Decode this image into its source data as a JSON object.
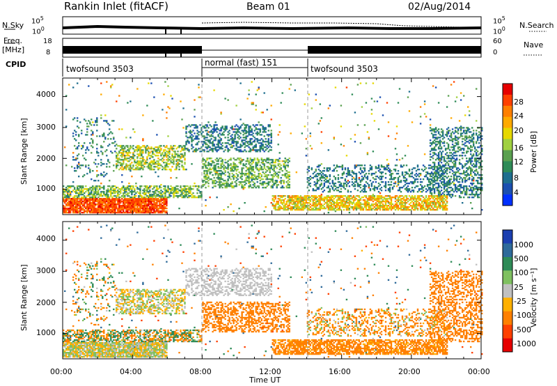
{
  "header": {
    "station": "Rankin Inlet (fitACF)",
    "beam": "Beam 01",
    "date": "02/Aug/2014"
  },
  "noise_panel": {
    "left_label": "N.Sky",
    "right_label": "N.Search",
    "left_ticks": [
      "10^5",
      "10^0"
    ],
    "right_ticks": [
      "10^5",
      "10^0"
    ]
  },
  "freq_panel": {
    "left_label_1": "Freq.",
    "left_label_2": "[MHz]",
    "right_label": "Nave",
    "left_ticks": [
      "18",
      "8"
    ],
    "right_ticks": [
      "60",
      "0"
    ]
  },
  "cpid_panel": {
    "label": "CPID",
    "segments": [
      {
        "name": "twofsound 3503",
        "start_hour": 0,
        "end_hour": 8
      },
      {
        "name": "normal (fast) 151",
        "start_hour": 8,
        "end_hour": 14
      },
      {
        "name": "twofsound 3503",
        "start_hour": 14,
        "end_hour": 24
      }
    ]
  },
  "chart_data": [
    {
      "type": "heatmap",
      "name": "power",
      "ylabel": "Slant Range [km]",
      "y_ticks": [
        "1000",
        "2000",
        "3000",
        "4000"
      ],
      "ylim": [
        180,
        4600
      ],
      "xlim": [
        0,
        24
      ],
      "colorbar_label": "Power [dB]",
      "colorbar_ticks": [
        "28",
        "24",
        "20",
        "16",
        "12",
        "8",
        "4"
      ],
      "colorbar_colors": [
        "#e60000",
        "#ff4000",
        "#ff7f00",
        "#ffaa00",
        "#e6d800",
        "#a0d040",
        "#5aa050",
        "#2e8b57",
        "#1e6e8e",
        "#1b4fb0",
        "#0030ff"
      ]
    },
    {
      "type": "heatmap",
      "name": "velocity",
      "ylabel": "Slant Range [km]",
      "y_ticks": [
        "1000",
        "2000",
        "3000",
        "4000"
      ],
      "ylim": [
        180,
        4600
      ],
      "xlim": [
        0,
        24
      ],
      "colorbar_label": "Velocity [m s⁻¹]",
      "colorbar_ticks": [
        "1000",
        "500",
        "100",
        "25",
        "-25",
        "-100",
        "-500",
        "-1000"
      ],
      "colorbar_colors": [
        "#1b3fb0",
        "#2e6a9a",
        "#2e8b57",
        "#7fc060",
        "#c0c0c0",
        "#ffb000",
        "#ff8000",
        "#ff4000",
        "#e60000"
      ]
    }
  ],
  "x_axis": {
    "label": "Time UT",
    "ticks": [
      "00:00",
      "04:00",
      "08:00",
      "12:00",
      "16:00",
      "20:00",
      "00:00"
    ]
  }
}
